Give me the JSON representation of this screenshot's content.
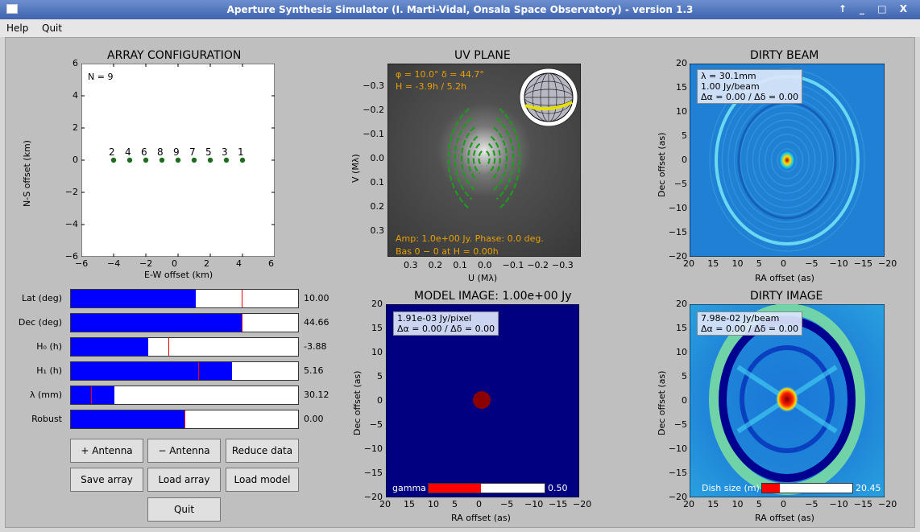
{
  "window": {
    "title": "Aperture Synthesis Simulator (I. Marti-Vidal, Onsala Space Observatory) - version  1.3",
    "controls": "↑ _ □ X"
  },
  "menu": {
    "help": "Help",
    "quit": "Quit"
  },
  "array_plot": {
    "title": "ARRAY CONFIGURATION",
    "xlabel": "E-W offset (km)",
    "ylabel": "N-S offset (km)",
    "n_label": "N = 9",
    "xticks": [
      "−6",
      "−4",
      "−2",
      "0",
      "2",
      "4",
      "6"
    ],
    "yticks": [
      "6",
      "4",
      "2",
      "0",
      "−2",
      "−4",
      "−6"
    ],
    "antenna_labels": [
      "2",
      "4",
      "6",
      "8",
      "9",
      "7",
      "5",
      "3",
      "1"
    ]
  },
  "uv_plot": {
    "title": "UV PLANE",
    "xlabel": "U (Mλ)",
    "ylabel": "V (Mλ)",
    "info_line1": "φ = 10.0°   δ = 44.7°",
    "info_line2": "H = -3.9h / 5.2h",
    "amp_line": "Amp: 1.0e+00 Jy.   Phase:   0.0 deg.",
    "bas_line": "Bas 0 − 0  at  H = 0.00h",
    "xticks": [
      "0.3",
      "0.2",
      "0.1",
      "0.0",
      "−0.1",
      "−0.2",
      "−0.3"
    ],
    "yticks": [
      "−0.3",
      "−0.2",
      "−0.1",
      "0.0",
      "0.1",
      "0.2",
      "0.3"
    ]
  },
  "beam_plot": {
    "title": "DIRTY BEAM",
    "xlabel": "RA offset (as)",
    "ylabel": "Dec offset (as)",
    "legend": [
      "λ = 30.1mm",
      "1.00 Jy/beam",
      "Δα =  0.00 / Δδ =  0.00"
    ],
    "xticks": [
      "20",
      "15",
      "10",
      "5",
      "0",
      "−5",
      "−10",
      "−15",
      "−20"
    ],
    "yticks": [
      "20",
      "15",
      "10",
      "5",
      "0",
      "−5",
      "−10",
      "−15",
      "−20"
    ]
  },
  "model_plot": {
    "title": "MODEL IMAGE: 1.00e+00 Jy",
    "xlabel": "RA offset (as)",
    "ylabel": "Dec offset (as)",
    "legend": [
      "1.91e-03 Jy/pixel",
      "Δα =  0.00 / Δδ =  0.00"
    ],
    "gamma_label": "gamma",
    "gamma_value": "0.50",
    "gamma_fraction": 0.45,
    "xticks": [
      "20",
      "15",
      "10",
      "5",
      "0",
      "−5",
      "−10",
      "−15",
      "−20"
    ],
    "yticks": [
      "20",
      "15",
      "10",
      "5",
      "0",
      "−5",
      "−10",
      "−15",
      "−20"
    ]
  },
  "image_plot": {
    "title": "DIRTY IMAGE",
    "xlabel": "RA offset (as)",
    "ylabel": "Dec offset (as)",
    "legend": [
      "7.98e-02 Jy/beam",
      "Δα =  0.00 / Δδ =  0.00"
    ],
    "dish_label": "Dish size (m)",
    "dish_value": "20.45",
    "dish_fraction": 0.2,
    "xticks": [
      "20",
      "15",
      "10",
      "5",
      "0",
      "−5",
      "−10",
      "−15",
      "−20"
    ],
    "yticks": [
      "20",
      "15",
      "10",
      "5",
      "0",
      "−5",
      "−10",
      "−15",
      "−20"
    ]
  },
  "sliders": [
    {
      "label": "Lat (deg)",
      "value": "10.00",
      "fill": 0.55,
      "mark": 0.75
    },
    {
      "label": "Dec (deg)",
      "value": "44.66",
      "fill": 0.75,
      "mark": 0.75
    },
    {
      "label": "H₀ (h)",
      "value": "-3.88",
      "fill": 0.34,
      "mark": 0.43
    },
    {
      "label": "H₁ (h)",
      "value": "5.16",
      "fill": 0.71,
      "mark": 0.56
    },
    {
      "label": "λ (mm)",
      "value": "30.12",
      "fill": 0.19,
      "mark": 0.09
    },
    {
      "label": "Robust",
      "value": "0.00",
      "fill": 0.5,
      "mark": 0.5
    }
  ],
  "buttons": {
    "add_antenna": "+ Antenna",
    "remove_antenna": "− Antenna",
    "reduce_data": "Reduce data",
    "save_array": "Save array",
    "load_array": "Load array",
    "load_model": "Load model",
    "quit": "Quit"
  }
}
